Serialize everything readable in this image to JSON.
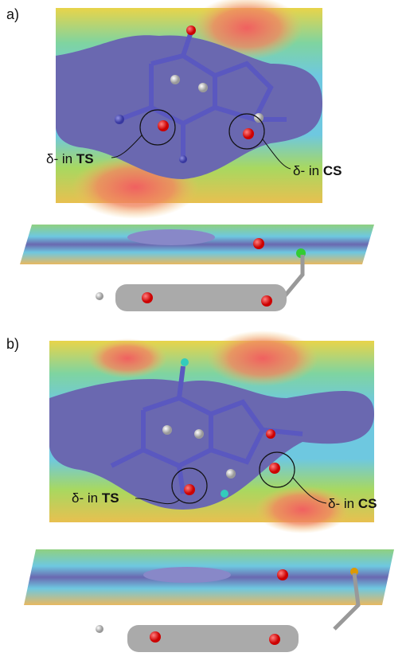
{
  "panels": [
    {
      "label": "a)",
      "annotations": [
        {
          "prefix": "δ- in",
          "emphasis": "TS"
        },
        {
          "prefix": "δ- in",
          "emphasis": "CS"
        }
      ]
    },
    {
      "label": "b)",
      "annotations": [
        {
          "prefix": "δ- in",
          "emphasis": "TS"
        },
        {
          "prefix": "δ- in",
          "emphasis": "CS"
        }
      ]
    }
  ]
}
